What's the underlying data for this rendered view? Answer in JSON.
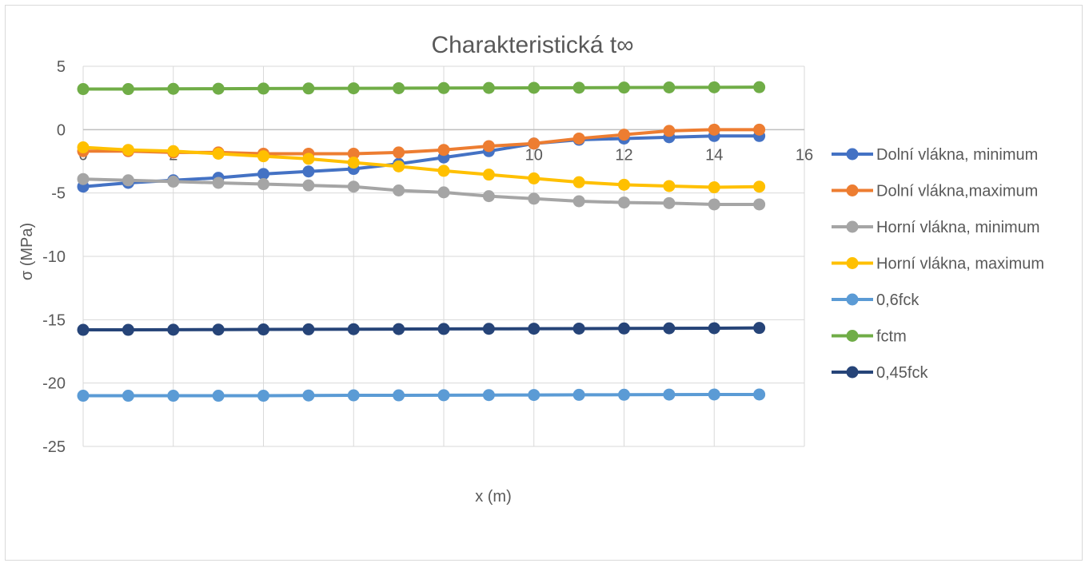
{
  "chart_data": {
    "type": "line",
    "title": "Charakteristická t∞",
    "xlabel": "x (m)",
    "ylabel": "σ (MPa)",
    "xlim": [
      0,
      16
    ],
    "ylim": [
      -25,
      5
    ],
    "xticks": [
      "0",
      "2",
      "4",
      "6",
      "8",
      "10",
      "12",
      "14",
      "16"
    ],
    "yticks": [
      "5",
      "0",
      "-5",
      "-10",
      "-15",
      "-20",
      "-25"
    ],
    "grid": true,
    "legend_position": "right",
    "x": [
      0,
      1,
      2,
      3,
      4,
      5,
      6,
      7,
      8,
      9,
      10,
      11,
      12,
      13,
      14,
      15
    ],
    "series": [
      {
        "name": "Dolní vlákna, minimum",
        "color": "#4472c4",
        "values": [
          -4.5,
          -4.2,
          -4.0,
          -3.8,
          -3.5,
          -3.3,
          -3.1,
          -2.7,
          -2.2,
          -1.7,
          -1.1,
          -0.8,
          -0.7,
          -0.6,
          -0.5,
          -0.5
        ]
      },
      {
        "name": "Dolní vlákna,maximum",
        "color": "#ed7d31",
        "values": [
          -1.7,
          -1.7,
          -1.8,
          -1.8,
          -1.9,
          -1.9,
          -1.9,
          -1.8,
          -1.6,
          -1.3,
          -1.1,
          -0.7,
          -0.4,
          -0.1,
          0.0,
          0.0
        ]
      },
      {
        "name": "Horní vlákna, minimum",
        "color": "#a5a5a5",
        "values": [
          -3.9,
          -4.0,
          -4.1,
          -4.2,
          -4.3,
          -4.4,
          -4.5,
          -4.8,
          -4.95,
          -5.25,
          -5.45,
          -5.65,
          -5.75,
          -5.8,
          -5.9,
          -5.9
        ]
      },
      {
        "name": "Horní vlákna, maximum",
        "color": "#ffc000",
        "values": [
          -1.4,
          -1.6,
          -1.7,
          -1.9,
          -2.1,
          -2.3,
          -2.6,
          -2.9,
          -3.25,
          -3.55,
          -3.85,
          -4.15,
          -4.35,
          -4.45,
          -4.55,
          -4.5
        ]
      },
      {
        "name": "0,6fck",
        "color": "#5b9bd5",
        "values": [
          -21.0,
          -21.0,
          -21.0,
          -21.0,
          -21.0,
          -20.98,
          -20.97,
          -20.97,
          -20.96,
          -20.95,
          -20.94,
          -20.93,
          -20.92,
          -20.91,
          -20.9,
          -20.9
        ]
      },
      {
        "name": "fctm",
        "color": "#70ad47",
        "values": [
          3.2,
          3.2,
          3.22,
          3.23,
          3.24,
          3.25,
          3.26,
          3.27,
          3.28,
          3.29,
          3.3,
          3.31,
          3.32,
          3.33,
          3.34,
          3.35
        ]
      },
      {
        "name": "0,45fck",
        "color": "#264478",
        "values": [
          -15.8,
          -15.8,
          -15.79,
          -15.78,
          -15.77,
          -15.76,
          -15.75,
          -15.74,
          -15.73,
          -15.72,
          -15.71,
          -15.7,
          -15.69,
          -15.68,
          -15.67,
          -15.65
        ]
      }
    ]
  }
}
